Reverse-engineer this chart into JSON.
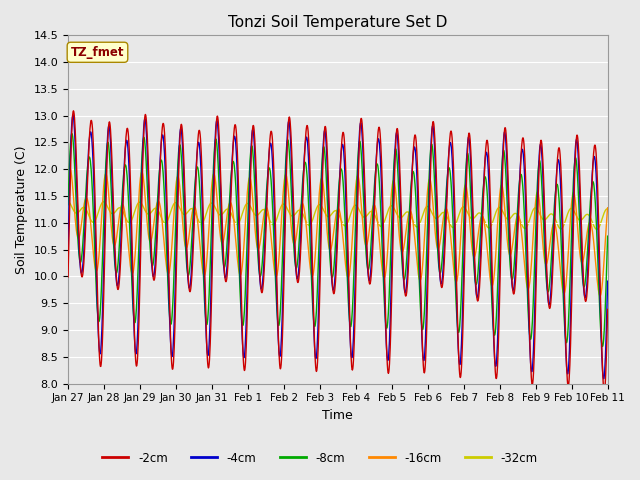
{
  "title": "Tonzi Soil Temperature Set D",
  "xlabel": "Time",
  "ylabel": "Soil Temperature (C)",
  "ylim": [
    8.0,
    14.5
  ],
  "yticks": [
    8.0,
    8.5,
    9.0,
    9.5,
    10.0,
    10.5,
    11.0,
    11.5,
    12.0,
    12.5,
    13.0,
    13.5,
    14.0,
    14.5
  ],
  "xtick_labels": [
    "Jan 27",
    "Jan 28",
    "Jan 29",
    "Jan 30",
    "Jan 31",
    "Feb 1",
    "Feb 2",
    "Feb 3",
    "Feb 4",
    "Feb 5",
    "Feb 6",
    "Feb 7",
    "Feb 8",
    "Feb 9",
    "Feb 10",
    "Feb 11"
  ],
  "legend_label": "TZ_fmet",
  "series_labels": [
    "-2cm",
    "-4cm",
    "-8cm",
    "-16cm",
    "-32cm"
  ],
  "series_colors": [
    "#cc0000",
    "#0000cc",
    "#00aa00",
    "#ff8800",
    "#cccc00"
  ],
  "plot_bg_color": "#e8e8e8",
  "fig_bg_color": "#e8e8e8"
}
